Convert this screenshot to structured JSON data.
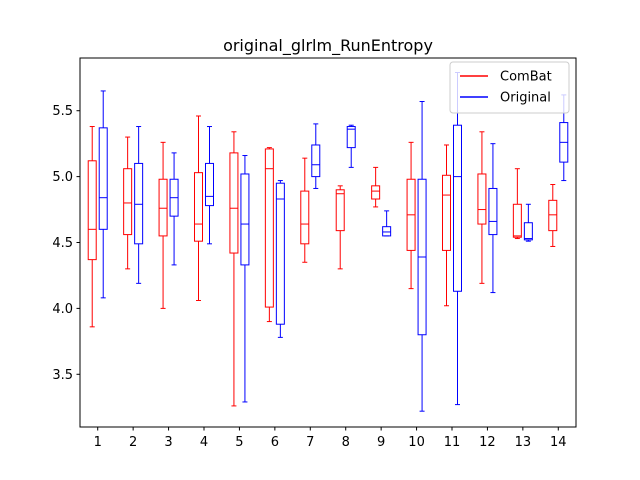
{
  "chart_data": {
    "type": "boxplot",
    "title": "original_glrlm_RunEntropy",
    "xlabel": "",
    "ylabel": "",
    "ylim": [
      3.1,
      5.9
    ],
    "yticks": [
      3.5,
      4.0,
      4.5,
      5.0,
      5.5
    ],
    "categories": [
      "1",
      "2",
      "3",
      "4",
      "5",
      "6",
      "7",
      "8",
      "9",
      "10",
      "11",
      "12",
      "13",
      "14"
    ],
    "legend_position": "upper right",
    "grid": false,
    "series": [
      {
        "name": "ComBat",
        "color": "#ff0000",
        "boxes": [
          {
            "whislo": 3.86,
            "q1": 4.37,
            "med": 4.6,
            "q3": 5.12,
            "whishi": 5.38
          },
          {
            "whislo": 4.3,
            "q1": 4.56,
            "med": 4.8,
            "q3": 5.06,
            "whishi": 5.3
          },
          {
            "whislo": 4.0,
            "q1": 4.55,
            "med": 4.76,
            "q3": 4.98,
            "whishi": 5.26
          },
          {
            "whislo": 4.06,
            "q1": 4.51,
            "med": 4.64,
            "q3": 5.03,
            "whishi": 5.46
          },
          {
            "whislo": 3.26,
            "q1": 4.42,
            "med": 4.76,
            "q3": 5.18,
            "whishi": 5.34
          },
          {
            "whislo": 3.9,
            "q1": 4.01,
            "med": 5.06,
            "q3": 5.21,
            "whishi": 5.22
          },
          {
            "whislo": 4.35,
            "q1": 4.49,
            "med": 4.64,
            "q3": 4.89,
            "whishi": 5.14
          },
          {
            "whislo": 4.3,
            "q1": 4.59,
            "med": 4.87,
            "q3": 4.9,
            "whishi": 4.93
          },
          {
            "whislo": 4.77,
            "q1": 4.83,
            "med": 4.89,
            "q3": 4.93,
            "whishi": 5.07
          },
          {
            "whislo": 4.15,
            "q1": 4.44,
            "med": 4.71,
            "q3": 4.98,
            "whishi": 5.26
          },
          {
            "whislo": 4.02,
            "q1": 4.44,
            "med": 4.86,
            "q3": 5.01,
            "whishi": 5.24
          },
          {
            "whislo": 4.19,
            "q1": 4.64,
            "med": 4.75,
            "q3": 5.02,
            "whishi": 5.34
          },
          {
            "whislo": 4.53,
            "q1": 4.54,
            "med": 4.55,
            "q3": 4.79,
            "whishi": 5.06
          },
          {
            "whislo": 4.47,
            "q1": 4.59,
            "med": 4.71,
            "q3": 4.82,
            "whishi": 4.94
          }
        ]
      },
      {
        "name": "Original",
        "color": "#0000ff",
        "boxes": [
          {
            "whislo": 4.08,
            "q1": 4.6,
            "med": 4.84,
            "q3": 5.37,
            "whishi": 5.65
          },
          {
            "whislo": 4.19,
            "q1": 4.49,
            "med": 4.79,
            "q3": 5.1,
            "whishi": 5.38
          },
          {
            "whislo": 4.33,
            "q1": 4.7,
            "med": 4.84,
            "q3": 4.98,
            "whishi": 5.18
          },
          {
            "whislo": 4.49,
            "q1": 4.78,
            "med": 4.85,
            "q3": 5.1,
            "whishi": 5.38
          },
          {
            "whislo": 3.29,
            "q1": 4.33,
            "med": 4.64,
            "q3": 5.02,
            "whishi": 5.16
          },
          {
            "whislo": 3.78,
            "q1": 3.88,
            "med": 4.83,
            "q3": 4.95,
            "whishi": 4.97
          },
          {
            "whislo": 4.91,
            "q1": 5.0,
            "med": 5.09,
            "q3": 5.24,
            "whishi": 5.4
          },
          {
            "whislo": 5.07,
            "q1": 5.22,
            "med": 5.36,
            "q3": 5.38,
            "whishi": 5.39
          },
          {
            "whislo": 4.55,
            "q1": 4.55,
            "med": 4.58,
            "q3": 4.62,
            "whishi": 4.74
          },
          {
            "whislo": 3.22,
            "q1": 3.8,
            "med": 4.39,
            "q3": 4.98,
            "whishi": 5.57
          },
          {
            "whislo": 3.27,
            "q1": 4.13,
            "med": 5.0,
            "q3": 5.39,
            "whishi": 5.79
          },
          {
            "whislo": 4.12,
            "q1": 4.56,
            "med": 4.66,
            "q3": 4.91,
            "whishi": 5.25
          },
          {
            "whislo": 4.51,
            "q1": 4.52,
            "med": 4.53,
            "q3": 4.65,
            "whishi": 4.79
          },
          {
            "whislo": 4.97,
            "q1": 5.11,
            "med": 5.26,
            "q3": 5.41,
            "whishi": 5.62
          }
        ]
      }
    ]
  }
}
